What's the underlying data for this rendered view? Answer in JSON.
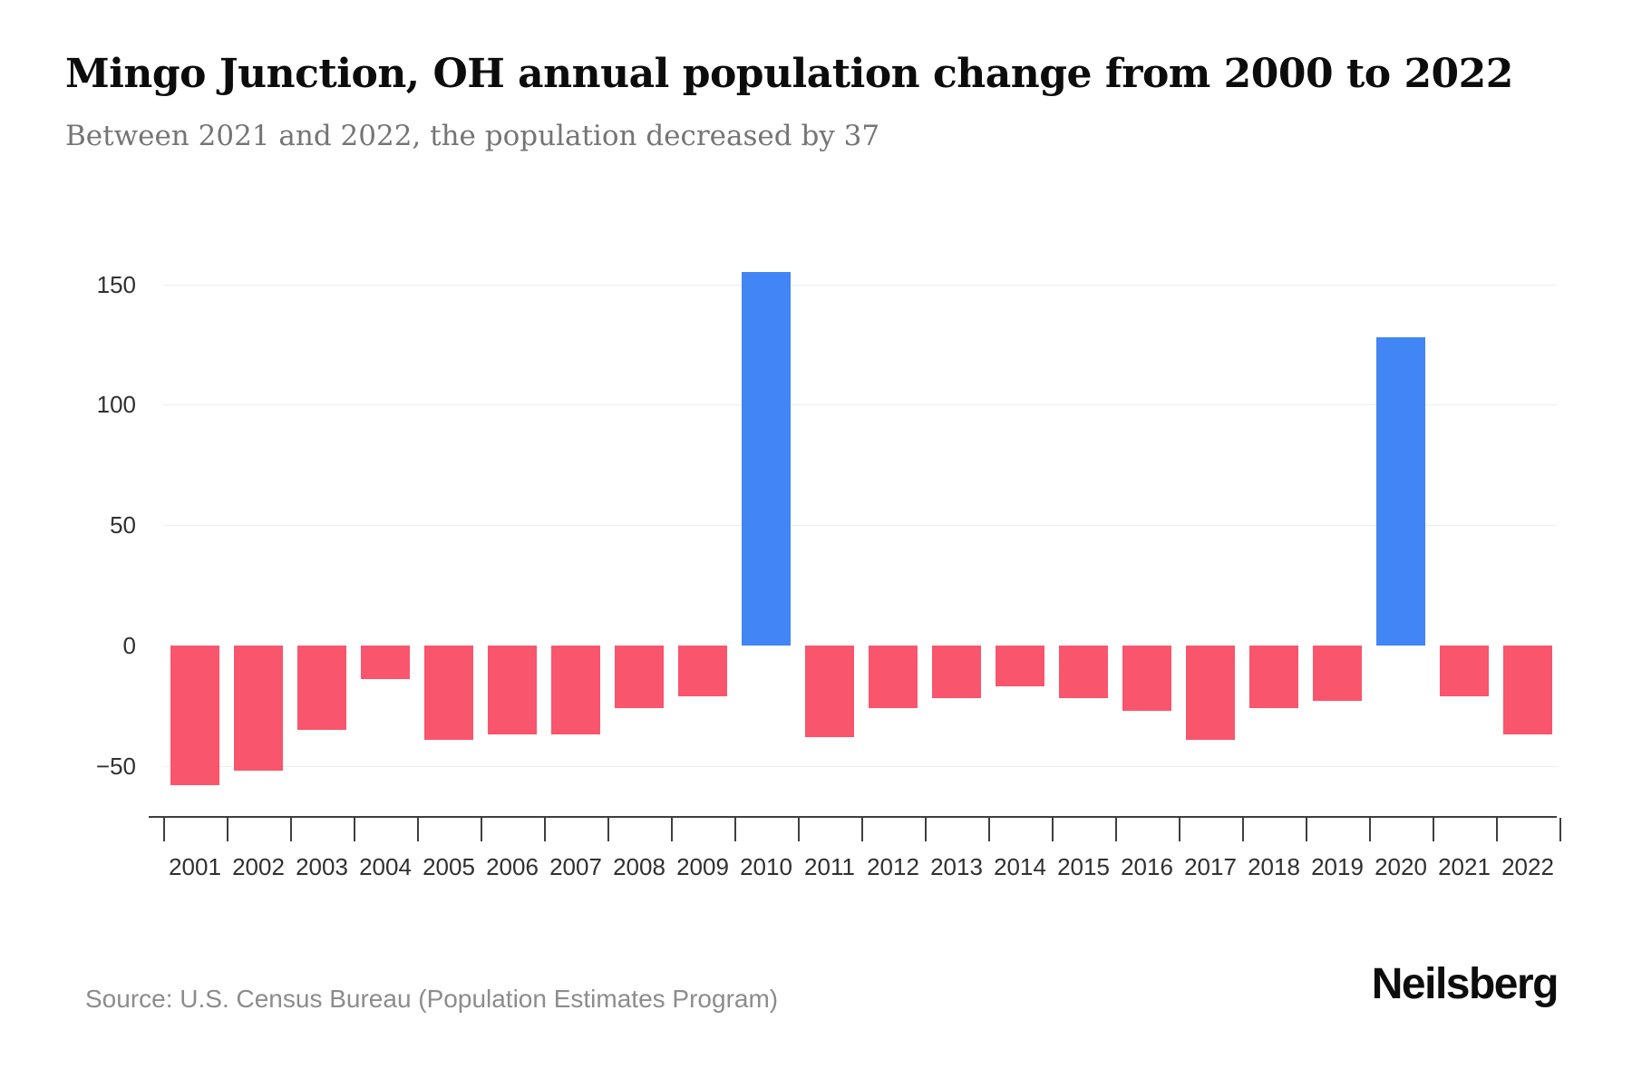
{
  "header": {
    "title": "Mingo Junction, OH annual population change from 2000 to 2022",
    "subtitle": "Between 2021 and 2022, the population decreased by 37"
  },
  "chart_data": {
    "type": "bar",
    "title": "Mingo Junction, OH annual population change from 2000 to 2022",
    "subtitle": "Between 2021 and 2022, the population decreased by 37",
    "categories": [
      "2001",
      "2002",
      "2003",
      "2004",
      "2005",
      "2006",
      "2007",
      "2008",
      "2009",
      "2010",
      "2011",
      "2012",
      "2013",
      "2014",
      "2015",
      "2016",
      "2017",
      "2018",
      "2019",
      "2020",
      "2021",
      "2022"
    ],
    "values": [
      -58,
      -52,
      -35,
      -14,
      -39,
      -37,
      -37,
      -26,
      -21,
      155,
      -38,
      -26,
      -22,
      -17,
      -22,
      -27,
      -39,
      -26,
      -23,
      128,
      -21,
      -37
    ],
    "series_name": "Annual population change",
    "xlabel": "",
    "ylabel": "",
    "ylim": [
      -71,
      178
    ],
    "ytick_values": [
      150,
      100,
      50,
      0,
      -50
    ],
    "ytick_labels": [
      "150",
      "100",
      "50",
      "0",
      "−50"
    ],
    "grid": "horizontal-gridlines-only",
    "legend": "none",
    "bar_colors": {
      "positive": "#4285f4",
      "negative": "#f9556d"
    }
  },
  "footer": {
    "source": "Source: U.S. Census Bureau (Population Estimates Program)",
    "brand": "Neilsberg"
  }
}
